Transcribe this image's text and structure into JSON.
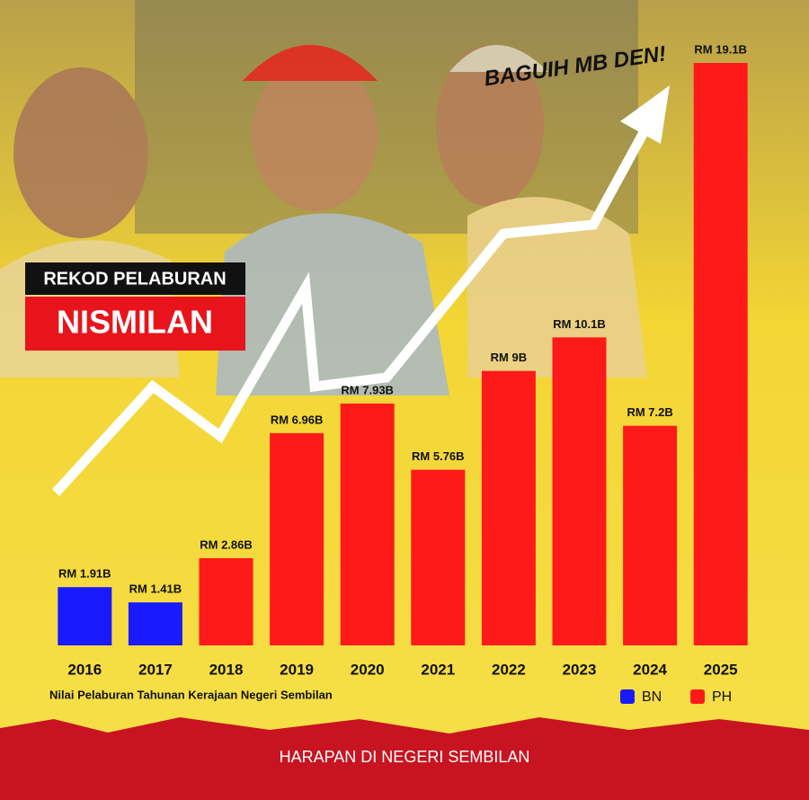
{
  "chart_data": {
    "type": "bar",
    "title": "REKOD PELABURAN",
    "subtitle": "NISMILAN",
    "annotation": "BAGUIH MB DEN!",
    "x_label": "Nilai Pelaburan Tahunan Kerajaan Negeri Sembilan",
    "footer": "HARAPAN DI NEGERI SEMBILAN",
    "categories": [
      "2016",
      "2017",
      "2018",
      "2019",
      "2020",
      "2021",
      "2022",
      "2023",
      "2024",
      "2025"
    ],
    "series": [
      {
        "name": "BN",
        "color": "#1a1aff",
        "values": [
          1.91,
          1.41,
          null,
          null,
          null,
          null,
          null,
          null,
          null,
          null
        ],
        "value_labels": [
          "RM 1.91B",
          "RM 1.41B",
          null,
          null,
          null,
          null,
          null,
          null,
          null,
          null
        ]
      },
      {
        "name": "PH",
        "color": "#ff1a1a",
        "values": [
          null,
          null,
          2.86,
          6.96,
          7.93,
          5.76,
          9,
          10.1,
          7.2,
          19.1
        ],
        "value_labels": [
          null,
          null,
          "RM 2.86B",
          "RM 6.96B",
          "RM 7.93B",
          "RM 5.76B",
          "RM 9B",
          "RM 10.1B",
          "RM 7.2B",
          "RM 19.1B"
        ]
      }
    ],
    "legend": "bottom-right"
  }
}
